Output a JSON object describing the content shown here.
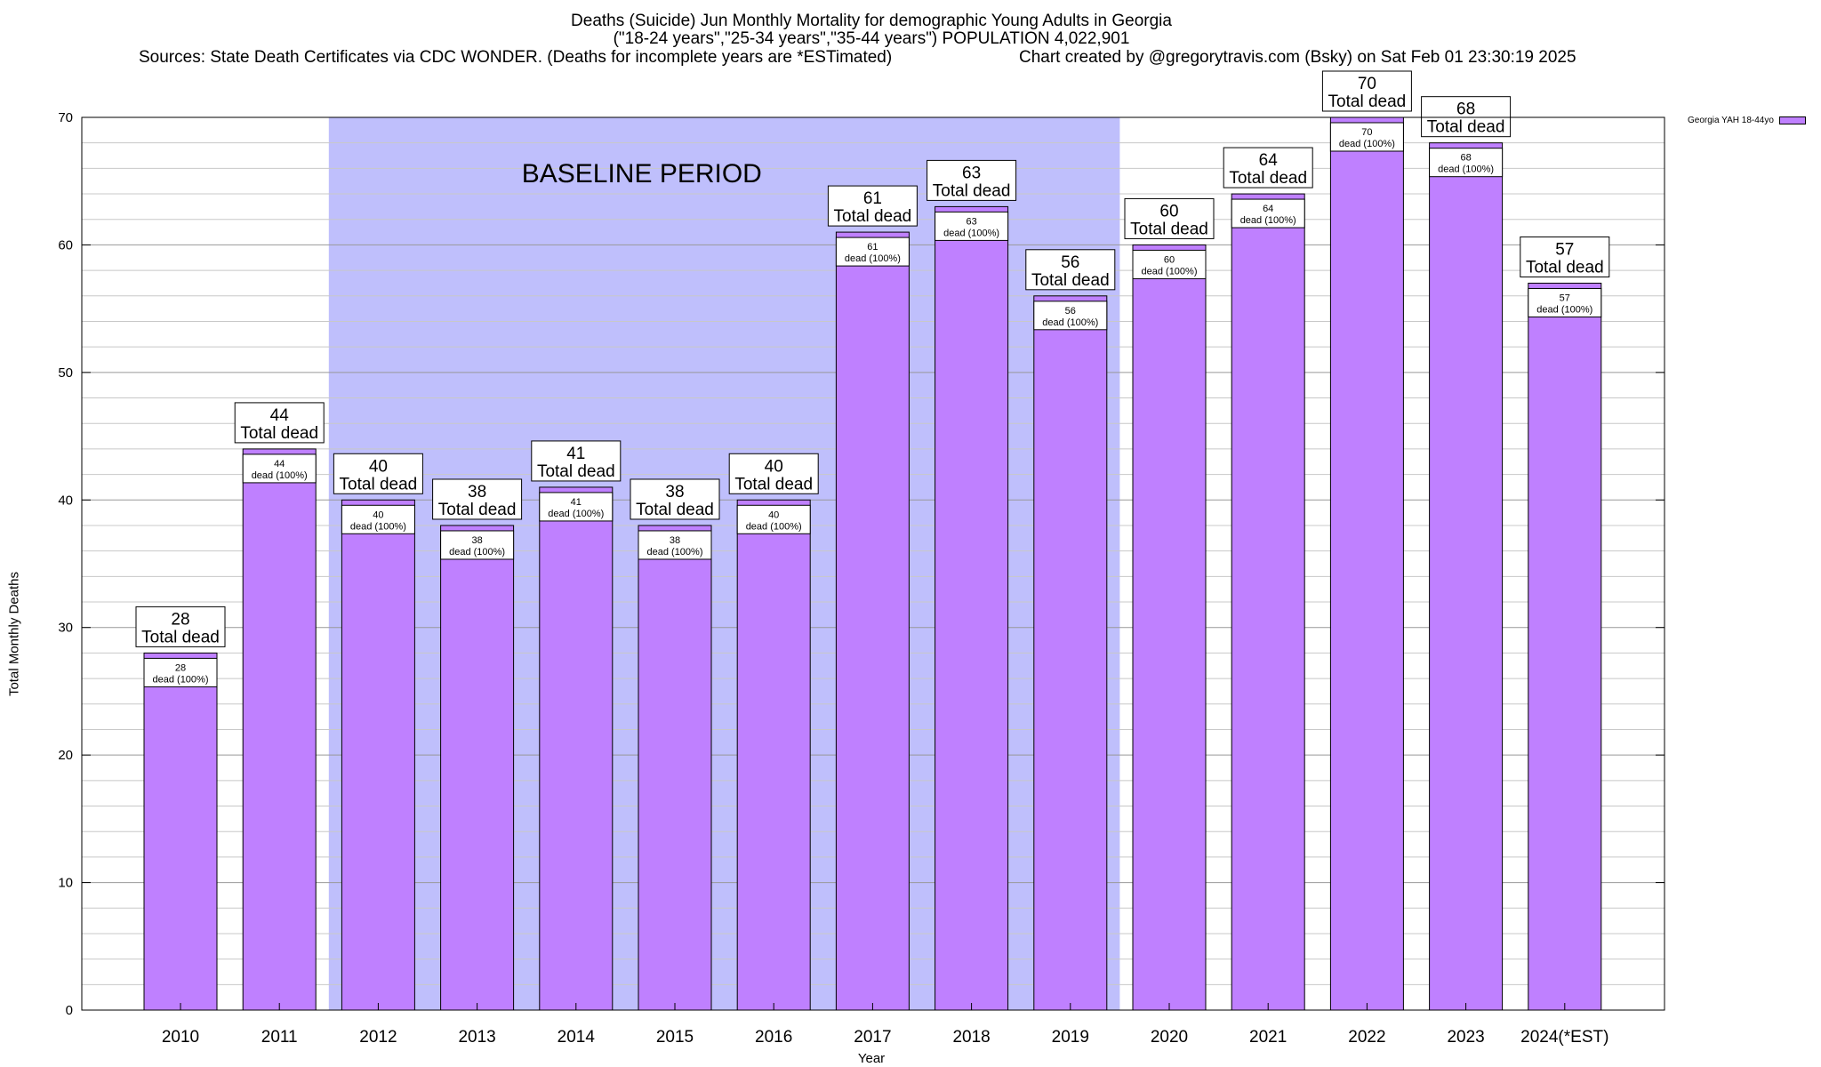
{
  "chart_data": {
    "type": "bar",
    "title": "Deaths (Suicide) Jun Monthly Mortality for demographic Young Adults in Georgia",
    "subtitle": "(\"18-24 years\",\"25-34 years\",\"35-44 years\") POPULATION 4,022,901",
    "source": "Sources: State Death Certificates via CDC WONDER. (Deaths for incomplete years are *ESTimated)",
    "credit": "Chart created by @gregorytravis.com (Bsky) on Sat Feb 01 23:30:19 2025",
    "xlabel": "Year",
    "ylabel": "Total Monthly Deaths",
    "ylim": [
      0,
      70
    ],
    "yticks": [
      0,
      10,
      20,
      30,
      40,
      50,
      60,
      70
    ],
    "grid": true,
    "legend_position": "top-right",
    "categories": [
      "2010",
      "2011",
      "2012",
      "2013",
      "2014",
      "2015",
      "2016",
      "2017",
      "2018",
      "2019",
      "2020",
      "2021",
      "2022",
      "2023",
      "2024(*EST)"
    ],
    "series": [
      {
        "name": "Georgia YAH 18-44yo",
        "color": "#bf80ff",
        "values": [
          28,
          44,
          40,
          38,
          41,
          38,
          40,
          61,
          63,
          56,
          60,
          64,
          70,
          68,
          57
        ]
      }
    ],
    "top_label_suffix": "Total dead",
    "inner_label_suffix": "dead (100%)",
    "baseline": {
      "label": "BASELINE PERIOD",
      "start": "2012",
      "end": "2019",
      "color": "#bfbffc"
    }
  }
}
